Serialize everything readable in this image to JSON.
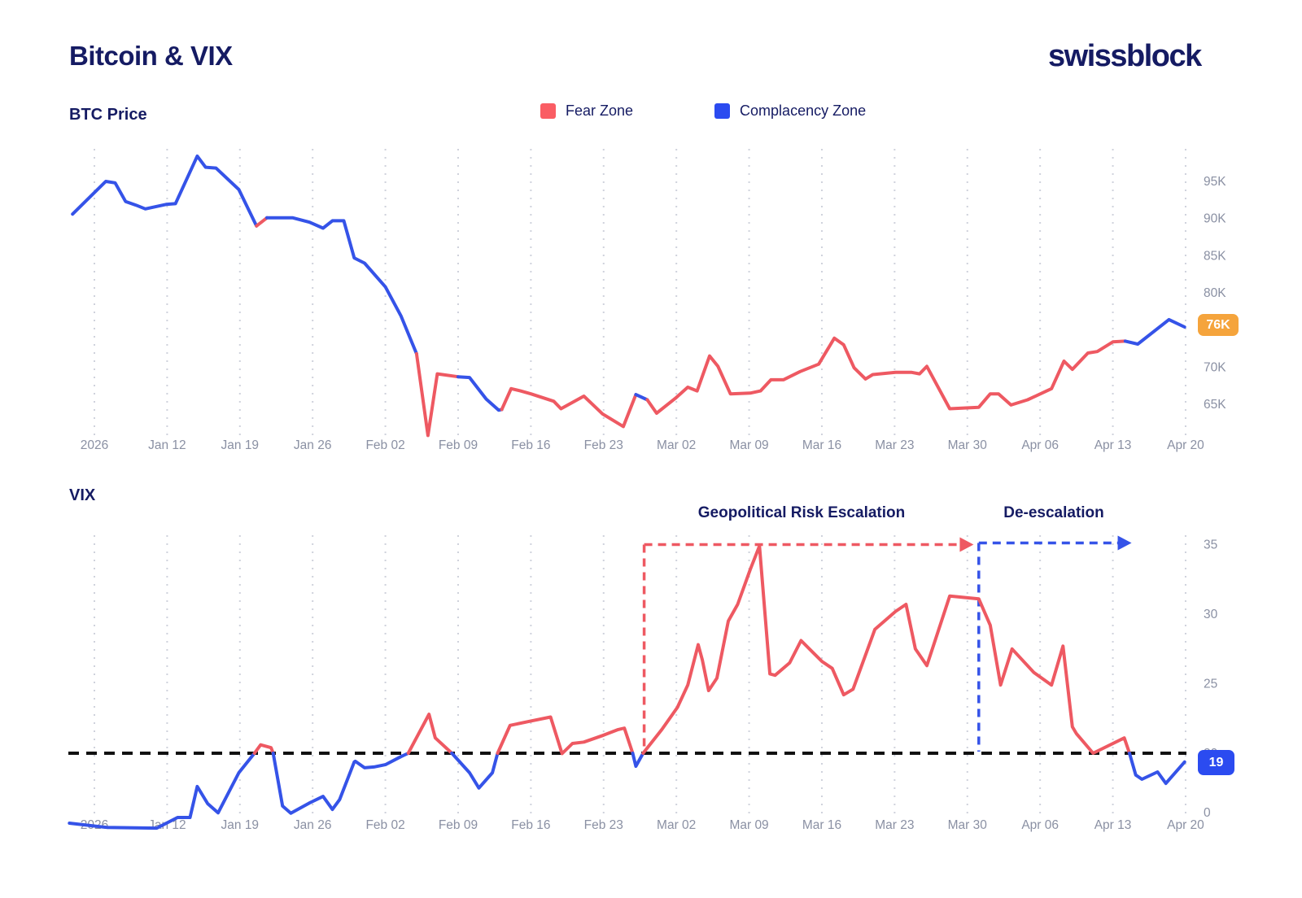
{
  "header": {
    "title": "Bitcoin & VIX",
    "logo": "swissblock"
  },
  "legend": [
    {
      "label": "Fear Zone",
      "color_key": "legend_fear"
    },
    {
      "label": "Complacency Zone",
      "color_key": "legend_complacency"
    }
  ],
  "colors": {
    "fear": "#ee5962",
    "complacency": "#3553e8",
    "legend_fear": "#fa5d64",
    "legend_complacency": "#2b4bf0",
    "navy": "#151b63",
    "axis_gray": "#8a90a3",
    "grid": "#cfd2dc",
    "orange": "#f5a43c",
    "threshold_black": "#111111",
    "background": "#ffffff"
  },
  "x_ticks": [
    {
      "label": "2026",
      "day": 0
    },
    {
      "label": "Jan 12",
      "day": 7
    },
    {
      "label": "Jan 19",
      "day": 14
    },
    {
      "label": "Jan 26",
      "day": 21
    },
    {
      "label": "Feb 02",
      "day": 28
    },
    {
      "label": "Feb 09",
      "day": 35
    },
    {
      "label": "Feb 16",
      "day": 42
    },
    {
      "label": "Feb 23",
      "day": 49
    },
    {
      "label": "Mar 02",
      "day": 56
    },
    {
      "label": "Mar 09",
      "day": 63
    },
    {
      "label": "Mar 16",
      "day": 70
    },
    {
      "label": "Mar 23",
      "day": 77
    },
    {
      "label": "Mar 30",
      "day": 84
    },
    {
      "label": "Apr 06",
      "day": 91
    },
    {
      "label": "Apr 13",
      "day": 98
    },
    {
      "label": "Apr 20",
      "day": 105
    }
  ],
  "chart_data": [
    {
      "id": "btc_price",
      "type": "line",
      "title": "BTC Price",
      "unit": "USD thousands",
      "current_value_label": "76K",
      "y_ticks": [
        {
          "label": "95K",
          "v": 95
        },
        {
          "label": "90K",
          "v": 90
        },
        {
          "label": "85K",
          "v": 85
        },
        {
          "label": "80K",
          "v": 80
        },
        {
          "label": "75K",
          "v": 75
        },
        {
          "label": "70K",
          "v": 70
        },
        {
          "label": "65K",
          "v": 65
        }
      ],
      "segments": [
        {
          "zone": "complacency",
          "points": [
            [
              -2.1,
              90.6
            ],
            [
              1.1,
              95.0
            ],
            [
              2.0,
              94.8
            ],
            [
              3.0,
              92.3
            ],
            [
              4.0,
              91.8
            ],
            [
              4.9,
              91.3
            ],
            [
              6.9,
              91.9
            ],
            [
              7.8,
              92.0
            ],
            [
              9.9,
              98.4
            ],
            [
              10.7,
              96.9
            ],
            [
              11.7,
              96.8
            ],
            [
              13.9,
              93.9
            ],
            [
              15.6,
              89.0
            ]
          ]
        },
        {
          "zone": "fear",
          "points": [
            [
              15.6,
              89.0
            ],
            [
              16.6,
              90.1
            ]
          ]
        },
        {
          "zone": "complacency",
          "points": [
            [
              16.6,
              90.1
            ],
            [
              19.1,
              90.1
            ],
            [
              20.7,
              89.5
            ],
            [
              22.0,
              88.7
            ],
            [
              22.9,
              89.7
            ],
            [
              24.0,
              89.7
            ],
            [
              25.0,
              84.7
            ],
            [
              26.0,
              84.0
            ],
            [
              28.0,
              80.8
            ],
            [
              29.5,
              76.9
            ],
            [
              31.0,
              71.8
            ]
          ]
        },
        {
          "zone": "fear",
          "points": [
            [
              31.0,
              71.8
            ],
            [
              32.1,
              60.8
            ],
            [
              33.0,
              69.1
            ],
            [
              35.0,
              68.7
            ]
          ]
        },
        {
          "zone": "complacency",
          "points": [
            [
              35.0,
              68.7
            ],
            [
              36.1,
              68.6
            ],
            [
              37.7,
              65.7
            ],
            [
              38.9,
              64.2
            ],
            [
              39.2,
              64.3
            ]
          ]
        },
        {
          "zone": "fear",
          "points": [
            [
              39.2,
              64.3
            ],
            [
              40.1,
              67.1
            ],
            [
              41.0,
              66.8
            ],
            [
              42.0,
              66.4
            ],
            [
              44.2,
              65.4
            ],
            [
              44.9,
              64.4
            ],
            [
              47.1,
              66.1
            ],
            [
              48.9,
              63.7
            ],
            [
              50.9,
              62.0
            ],
            [
              52.1,
              66.3
            ]
          ]
        },
        {
          "zone": "complacency",
          "points": [
            [
              52.1,
              66.3
            ],
            [
              53.2,
              65.6
            ]
          ]
        },
        {
          "zone": "fear",
          "points": [
            [
              53.2,
              65.6
            ],
            [
              54.1,
              63.8
            ],
            [
              55.9,
              65.8
            ],
            [
              57.1,
              67.3
            ],
            [
              58.0,
              66.8
            ],
            [
              59.2,
              71.5
            ],
            [
              60.0,
              70.1
            ],
            [
              61.2,
              66.4
            ],
            [
              63.1,
              66.5
            ],
            [
              64.1,
              66.8
            ],
            [
              65.1,
              68.3
            ],
            [
              66.3,
              68.3
            ],
            [
              67.9,
              69.4
            ],
            [
              69.7,
              70.4
            ],
            [
              71.2,
              73.9
            ],
            [
              72.1,
              73.0
            ],
            [
              73.1,
              69.9
            ],
            [
              74.2,
              68.4
            ],
            [
              74.9,
              69.0
            ],
            [
              77.1,
              69.3
            ],
            [
              78.6,
              69.3
            ],
            [
              79.4,
              69.1
            ],
            [
              80.1,
              70.1
            ],
            [
              82.3,
              64.4
            ],
            [
              85.1,
              64.6
            ],
            [
              86.2,
              66.4
            ],
            [
              87.0,
              66.4
            ],
            [
              88.2,
              64.9
            ],
            [
              89.8,
              65.6
            ],
            [
              92.1,
              67.1
            ],
            [
              93.3,
              70.8
            ],
            [
              94.1,
              69.7
            ],
            [
              95.6,
              71.9
            ],
            [
              96.5,
              72.1
            ],
            [
              98.0,
              73.4
            ],
            [
              99.2,
              73.5
            ]
          ]
        },
        {
          "zone": "complacency",
          "points": [
            [
              99.2,
              73.5
            ],
            [
              100.4,
              73.1
            ],
            [
              103.4,
              76.4
            ],
            [
              104.9,
              75.4
            ]
          ]
        }
      ]
    },
    {
      "id": "vix",
      "type": "line",
      "title": "VIX",
      "current_value_label": "19",
      "threshold_v": 20,
      "y_ticks": [
        {
          "label": "35",
          "v": 35
        },
        {
          "label": "30",
          "v": 30
        },
        {
          "label": "25",
          "v": 25
        },
        {
          "label": "20",
          "v": 20
        },
        {
          "label": "0",
          "v": 0,
          "y_override": 999
        }
      ],
      "annotations": [
        {
          "label": "Geopolitical Risk Escalation",
          "color_key": "fear",
          "from_day": 52.9,
          "to_day": 84.6,
          "level_v": 35
        },
        {
          "label": "De-escalation",
          "color_key": "complacency",
          "from_day": 85.1,
          "to_day": 99.8,
          "level_v": 35
        }
      ],
      "segments": [
        {
          "zone": "complacency",
          "points": [
            [
              -2.4,
              1.7
            ],
            [
              1.2,
              0.6
            ],
            [
              6.0,
              0.4
            ],
            [
              8.0,
              3.2
            ],
            [
              9.2,
              3.2
            ],
            [
              9.9,
              11.3
            ],
            [
              10.9,
              6.8
            ],
            [
              11.9,
              4.4
            ],
            [
              13.9,
              14.9
            ],
            [
              15.4,
              20.0
            ]
          ]
        },
        {
          "zone": "fear",
          "points": [
            [
              15.4,
              20.0
            ],
            [
              16.0,
              20.6
            ],
            [
              17.0,
              20.4
            ],
            [
              17.2,
              20.0
            ]
          ]
        },
        {
          "zone": "complacency",
          "points": [
            [
              17.2,
              20.0
            ],
            [
              18.1,
              6.2
            ],
            [
              18.9,
              4.3
            ],
            [
              20.7,
              7.0
            ],
            [
              22.0,
              8.7
            ],
            [
              22.9,
              5.3
            ],
            [
              23.6,
              7.9
            ],
            [
              25.0,
              17.7
            ],
            [
              25.1,
              17.9
            ],
            [
              26.0,
              16.2
            ],
            [
              26.9,
              16.4
            ],
            [
              28.0,
              17.0
            ],
            [
              29.5,
              19.1
            ],
            [
              30.2,
              20.0
            ]
          ]
        },
        {
          "zone": "fear",
          "points": [
            [
              30.2,
              20.0
            ],
            [
              32.2,
              22.8
            ],
            [
              32.8,
              21.1
            ],
            [
              34.4,
              20.0
            ]
          ]
        },
        {
          "zone": "complacency",
          "points": [
            [
              34.4,
              20.0
            ],
            [
              36.1,
              14.9
            ],
            [
              37.0,
              10.9
            ],
            [
              38.3,
              14.9
            ],
            [
              38.8,
              20.0
            ]
          ]
        },
        {
          "zone": "fear",
          "points": [
            [
              38.8,
              20.0
            ],
            [
              40.0,
              22.0
            ],
            [
              41.9,
              22.3
            ],
            [
              43.9,
              22.6
            ],
            [
              45.0,
              19.9
            ],
            [
              46.0,
              20.7
            ],
            [
              47.1,
              20.8
            ],
            [
              49.0,
              21.3
            ],
            [
              50.4,
              21.7
            ],
            [
              51.0,
              21.8
            ],
            [
              51.8,
              20.0
            ]
          ]
        },
        {
          "zone": "complacency",
          "points": [
            [
              51.8,
              20.0
            ],
            [
              52.1,
              16.6
            ],
            [
              52.8,
              20.0
            ]
          ]
        },
        {
          "zone": "fear",
          "points": [
            [
              52.8,
              20.0
            ],
            [
              54.6,
              21.7
            ],
            [
              56.1,
              23.3
            ],
            [
              57.1,
              24.9
            ],
            [
              58.1,
              27.8
            ],
            [
              58.5,
              26.7
            ],
            [
              59.1,
              24.5
            ],
            [
              59.9,
              25.4
            ],
            [
              61.0,
              29.5
            ],
            [
              61.9,
              30.7
            ],
            [
              63.1,
              33.2
            ],
            [
              64.0,
              34.9
            ],
            [
              65.0,
              25.7
            ],
            [
              65.5,
              25.6
            ],
            [
              66.9,
              26.5
            ],
            [
              68.0,
              28.1
            ],
            [
              69.2,
              27.2
            ],
            [
              70.0,
              26.6
            ],
            [
              71.0,
              26.1
            ],
            [
              72.1,
              24.2
            ],
            [
              73.0,
              24.6
            ],
            [
              75.1,
              28.9
            ],
            [
              77.1,
              30.2
            ],
            [
              78.1,
              30.7
            ],
            [
              79.0,
              27.5
            ],
            [
              80.1,
              26.3
            ],
            [
              82.3,
              31.3
            ],
            [
              83.7,
              31.2
            ],
            [
              85.1,
              31.1
            ],
            [
              86.2,
              29.2
            ],
            [
              87.2,
              24.9
            ],
            [
              88.3,
              27.5
            ],
            [
              90.4,
              25.8
            ],
            [
              92.1,
              24.9
            ],
            [
              93.2,
              27.7
            ],
            [
              94.1,
              21.9
            ],
            [
              94.5,
              21.4
            ],
            [
              96.1,
              20.0
            ],
            [
              99.1,
              21.1
            ],
            [
              99.6,
              20.0
            ]
          ]
        },
        {
          "zone": "complacency",
          "points": [
            [
              99.6,
              20.0
            ],
            [
              100.2,
              14.3
            ],
            [
              100.8,
              13.2
            ],
            [
              102.3,
              15.1
            ],
            [
              103.1,
              12.1
            ],
            [
              104.9,
              17.7
            ]
          ]
        }
      ]
    }
  ]
}
